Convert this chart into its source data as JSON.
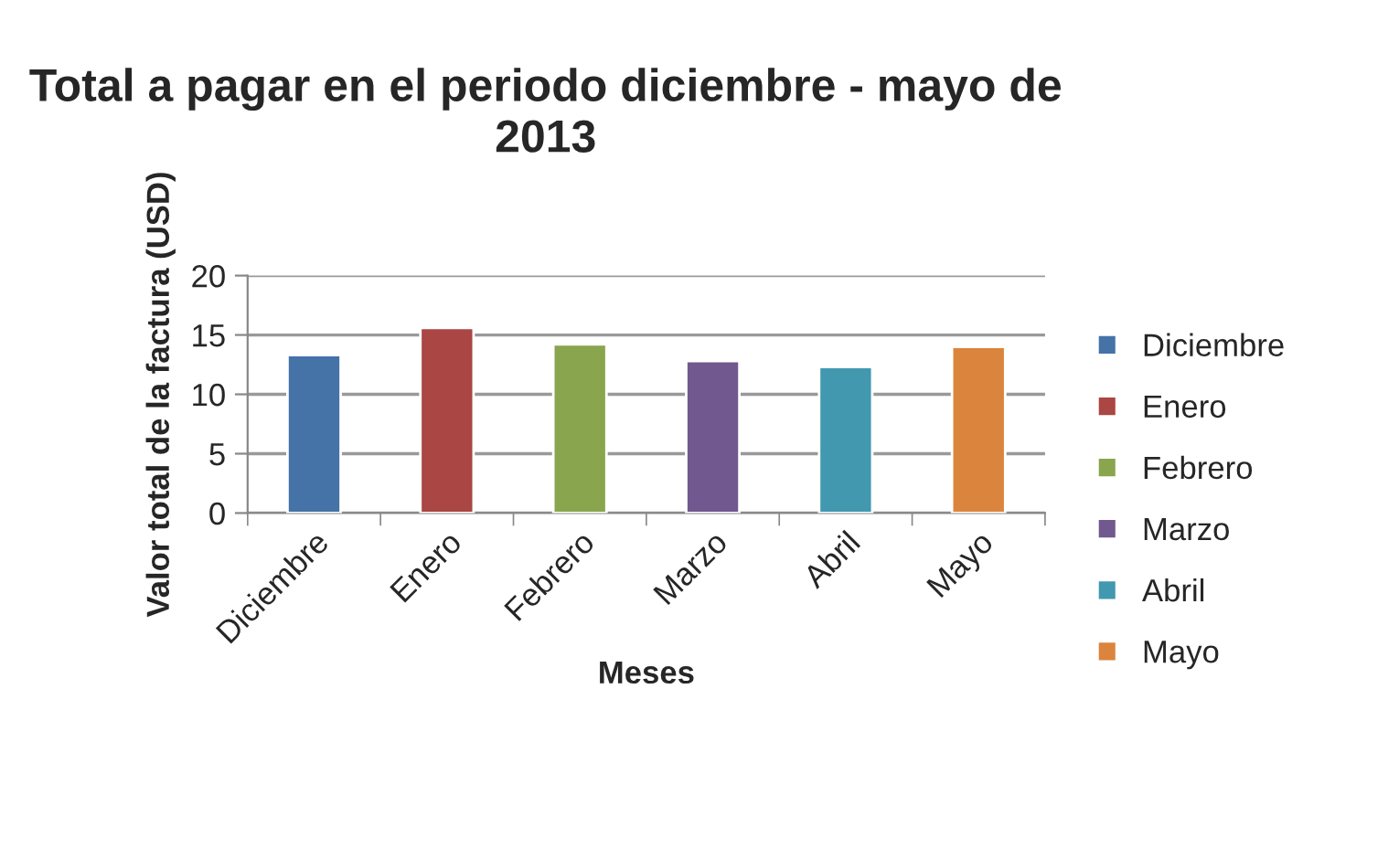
{
  "chart_data": {
    "type": "bar",
    "title": "Total a pagar en el periodo diciembre - mayo de 2013",
    "xlabel": "Meses",
    "ylabel": "Valor total de la factura (USD)",
    "categories": [
      "Diciembre",
      "Enero",
      "Febrero",
      "Marzo",
      "Abril",
      "Mayo"
    ],
    "series": [
      {
        "name": "Diciembre",
        "color": "#4572a7",
        "values": [
          13.3,
          null,
          null,
          null,
          null,
          null
        ]
      },
      {
        "name": "Enero",
        "color": "#aa4643",
        "values": [
          null,
          15.6,
          null,
          null,
          null,
          null
        ]
      },
      {
        "name": "Febrero",
        "color": "#89a54e",
        "values": [
          null,
          null,
          14.2,
          null,
          null,
          null
        ]
      },
      {
        "name": "Marzo",
        "color": "#71588f",
        "values": [
          null,
          null,
          null,
          12.8,
          null,
          null
        ]
      },
      {
        "name": "Abril",
        "color": "#4198af",
        "values": [
          null,
          null,
          null,
          null,
          12.3,
          null
        ]
      },
      {
        "name": "Mayo",
        "color": "#db843d",
        "values": [
          null,
          null,
          null,
          null,
          null,
          14.0
        ]
      }
    ],
    "ylim": [
      0,
      20
    ],
    "yticks": [
      0,
      5,
      10,
      15,
      20
    ],
    "grid": "y",
    "legend": "right"
  }
}
